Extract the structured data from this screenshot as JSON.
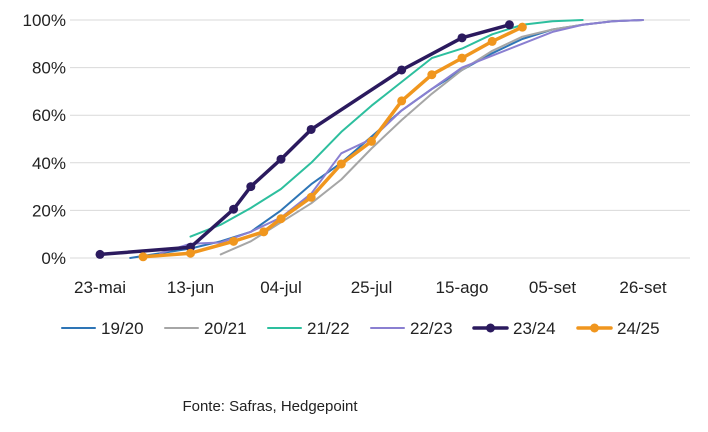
{
  "chart_data": {
    "type": "line",
    "x_axis": {
      "type": "date",
      "range": [
        "05-23",
        "09-26"
      ],
      "ticks": [
        {
          "date": "05-23",
          "label": "23-mai"
        },
        {
          "date": "06-13",
          "label": "13-jun"
        },
        {
          "date": "07-04",
          "label": "04-jul"
        },
        {
          "date": "07-25",
          "label": "25-jul"
        },
        {
          "date": "08-15",
          "label": "15-ago"
        },
        {
          "date": "09-05",
          "label": "05-set"
        },
        {
          "date": "09-26",
          "label": "26-set"
        }
      ]
    },
    "y_axis": {
      "range": [
        0,
        100
      ],
      "ticks": [
        {
          "value": 0,
          "label": "0%"
        },
        {
          "value": 20,
          "label": "20%"
        },
        {
          "value": 40,
          "label": "40%"
        },
        {
          "value": 60,
          "label": "60%"
        },
        {
          "value": 80,
          "label": "80%"
        },
        {
          "value": 100,
          "label": "100%"
        }
      ]
    },
    "grid": {
      "horizontal": true,
      "vertical": false
    },
    "legend_position": "bottom",
    "series": [
      {
        "name": "19/20",
        "color": "#2e75b6",
        "markers": false,
        "points": [
          {
            "x": "05-30",
            "y": 0
          },
          {
            "x": "06-06",
            "y": 2
          },
          {
            "x": "06-13",
            "y": 4
          },
          {
            "x": "06-20",
            "y": 7
          },
          {
            "x": "06-27",
            "y": 11
          },
          {
            "x": "07-04",
            "y": 20
          },
          {
            "x": "07-11",
            "y": 31
          },
          {
            "x": "07-18",
            "y": 40
          },
          {
            "x": "07-25",
            "y": 51
          },
          {
            "x": "08-01",
            "y": 62
          },
          {
            "x": "08-08",
            "y": 71
          },
          {
            "x": "08-15",
            "y": 79
          },
          {
            "x": "08-22",
            "y": 86
          },
          {
            "x": "08-29",
            "y": 92
          },
          {
            "x": "09-05",
            "y": 96
          },
          {
            "x": "09-12",
            "y": 98
          },
          {
            "x": "09-19",
            "y": 99.5
          },
          {
            "x": "09-26",
            "y": 100
          }
        ]
      },
      {
        "name": "20/21",
        "color": "#a6a6a6",
        "markers": false,
        "points": [
          {
            "x": "06-20",
            "y": 1.5
          },
          {
            "x": "06-27",
            "y": 7
          },
          {
            "x": "07-04",
            "y": 15
          },
          {
            "x": "07-11",
            "y": 23
          },
          {
            "x": "07-18",
            "y": 33
          },
          {
            "x": "07-25",
            "y": 46
          },
          {
            "x": "08-01",
            "y": 58
          },
          {
            "x": "08-08",
            "y": 69
          },
          {
            "x": "08-15",
            "y": 79
          },
          {
            "x": "08-22",
            "y": 87
          },
          {
            "x": "08-29",
            "y": 93
          },
          {
            "x": "09-05",
            "y": 96
          },
          {
            "x": "09-12",
            "y": 98
          },
          {
            "x": "09-19",
            "y": 99.5
          },
          {
            "x": "09-26",
            "y": 100
          }
        ]
      },
      {
        "name": "21/22",
        "color": "#2dbf9e",
        "markers": false,
        "points": [
          {
            "x": "06-13",
            "y": 9
          },
          {
            "x": "06-20",
            "y": 14
          },
          {
            "x": "06-27",
            "y": 21
          },
          {
            "x": "07-04",
            "y": 29
          },
          {
            "x": "07-11",
            "y": 40
          },
          {
            "x": "07-18",
            "y": 53
          },
          {
            "x": "07-25",
            "y": 64
          },
          {
            "x": "08-01",
            "y": 74
          },
          {
            "x": "08-08",
            "y": 84
          },
          {
            "x": "08-15",
            "y": 88
          },
          {
            "x": "08-22",
            "y": 94
          },
          {
            "x": "08-29",
            "y": 98
          },
          {
            "x": "09-05",
            "y": 99.5
          },
          {
            "x": "09-12",
            "y": 100
          }
        ]
      },
      {
        "name": "22/23",
        "color": "#8a7fd1",
        "markers": false,
        "points": [
          {
            "x": "06-06",
            "y": 2
          },
          {
            "x": "06-13",
            "y": 6
          },
          {
            "x": "06-20",
            "y": 6.5
          },
          {
            "x": "06-27",
            "y": 11
          },
          {
            "x": "07-04",
            "y": 17
          },
          {
            "x": "07-11",
            "y": 27
          },
          {
            "x": "07-18",
            "y": 44
          },
          {
            "x": "07-25",
            "y": 50
          },
          {
            "x": "08-01",
            "y": 62
          },
          {
            "x": "08-08",
            "y": 71
          },
          {
            "x": "08-15",
            "y": 80
          },
          {
            "x": "08-22",
            "y": 85
          },
          {
            "x": "08-29",
            "y": 90
          },
          {
            "x": "09-05",
            "y": 95
          },
          {
            "x": "09-12",
            "y": 98
          },
          {
            "x": "09-19",
            "y": 99.5
          },
          {
            "x": "09-26",
            "y": 100
          }
        ]
      },
      {
        "name": "23/24",
        "color": "#2b1a5e",
        "markers": true,
        "points": [
          {
            "x": "05-23",
            "y": 1.5
          },
          {
            "x": "06-13",
            "y": 4.5
          },
          {
            "x": "06-23",
            "y": 20.5
          },
          {
            "x": "06-27",
            "y": 30
          },
          {
            "x": "07-04",
            "y": 41.5
          },
          {
            "x": "07-11",
            "y": 54
          },
          {
            "x": "08-01",
            "y": 79
          },
          {
            "x": "08-15",
            "y": 92.5
          },
          {
            "x": "08-26",
            "y": 98
          }
        ]
      },
      {
        "name": "24/25",
        "color": "#f0961e",
        "markers": true,
        "points": [
          {
            "x": "06-02",
            "y": 0.5
          },
          {
            "x": "06-13",
            "y": 2
          },
          {
            "x": "06-23",
            "y": 7
          },
          {
            "x": "06-30",
            "y": 11
          },
          {
            "x": "07-04",
            "y": 16.5
          },
          {
            "x": "07-11",
            "y": 25.5
          },
          {
            "x": "07-18",
            "y": 39.5
          },
          {
            "x": "07-25",
            "y": 49
          },
          {
            "x": "08-01",
            "y": 66
          },
          {
            "x": "08-08",
            "y": 77
          },
          {
            "x": "08-15",
            "y": 84
          },
          {
            "x": "08-22",
            "y": 91
          },
          {
            "x": "08-29",
            "y": 97
          }
        ]
      }
    ]
  },
  "source_text": "Fonte: Safras, Hedgepoint"
}
